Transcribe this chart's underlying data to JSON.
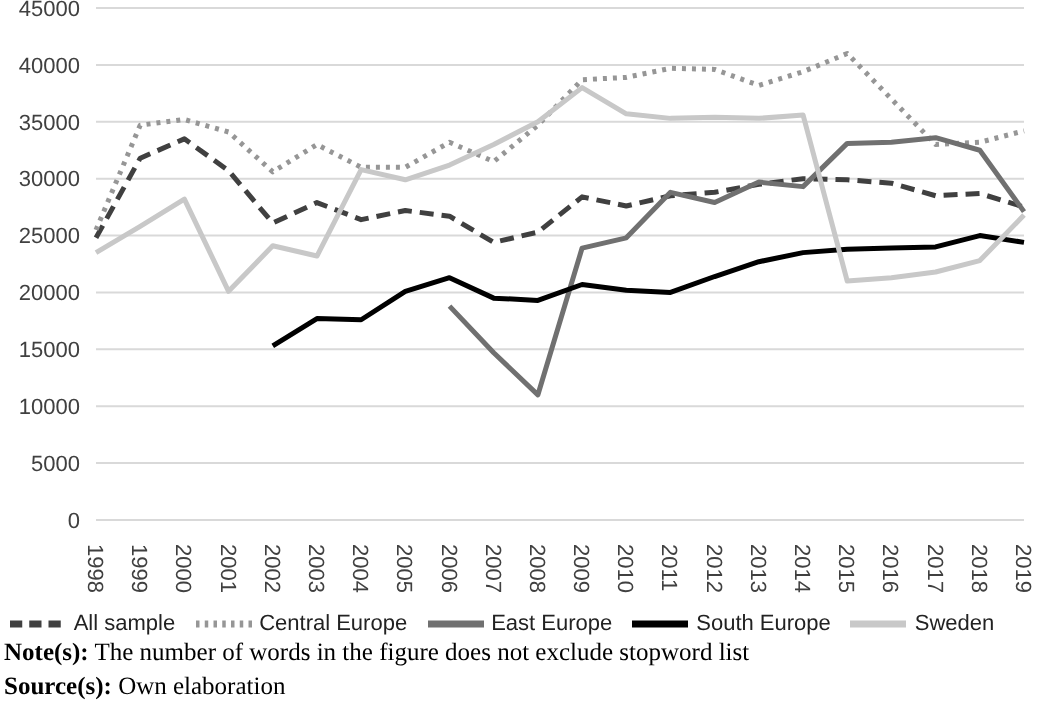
{
  "chart_data": {
    "type": "line",
    "categories": [
      "1998",
      "1999",
      "2000",
      "2001",
      "2002",
      "2003",
      "2004",
      "2005",
      "2006",
      "2007",
      "2008",
      "2009",
      "2010",
      "2011",
      "2012",
      "2013",
      "2014",
      "2015",
      "2016",
      "2017",
      "2018",
      "2019"
    ],
    "series": [
      {
        "name": "All sample",
        "color": "#404040",
        "line_style": "dashed",
        "values": [
          24800,
          31800,
          33500,
          30700,
          26100,
          27900,
          26400,
          27200,
          26700,
          24400,
          25300,
          28400,
          27600,
          28500,
          28800,
          29500,
          30000,
          29900,
          29600,
          28500,
          28700,
          27500
        ]
      },
      {
        "name": "Central Europe",
        "color": "#969696",
        "line_style": "dotted",
        "values": [
          25500,
          34700,
          35200,
          34100,
          30600,
          33000,
          31000,
          31000,
          33200,
          31500,
          34700,
          38700,
          38900,
          39700,
          39600,
          38200,
          39400,
          41000,
          37000,
          33000,
          33200,
          34200
        ]
      },
      {
        "name": "East Europe",
        "color": "#707070",
        "line_style": "solid",
        "values": [
          null,
          null,
          null,
          null,
          null,
          null,
          null,
          null,
          18800,
          14700,
          11000,
          23900,
          24800,
          28800,
          27900,
          29700,
          29300,
          33100,
          33200,
          33600,
          32500,
          27100
        ]
      },
      {
        "name": "South Europe",
        "color": "#000000",
        "line_style": "solid",
        "values": [
          null,
          null,
          null,
          null,
          15300,
          17700,
          17600,
          20100,
          21300,
          19500,
          19300,
          20700,
          20200,
          20000,
          21400,
          22700,
          23500,
          23800,
          23900,
          24000,
          25000,
          24400
        ]
      },
      {
        "name": "Sweden",
        "color": "#c8c8c8",
        "line_style": "solid",
        "values": [
          23500,
          25800,
          28200,
          20100,
          24100,
          23200,
          30800,
          29900,
          31200,
          33000,
          35000,
          38000,
          35700,
          35300,
          35400,
          35300,
          35600,
          21000,
          21300,
          21800,
          22800,
          26800
        ]
      }
    ],
    "ylim": [
      0,
      45000
    ],
    "yticks": [
      0,
      5000,
      10000,
      15000,
      20000,
      25000,
      30000,
      35000,
      40000,
      45000
    ],
    "grid": "y",
    "legend": "bottom",
    "marker": "none",
    "annotations": [
      "Note(s): The number of words in the figure does not exclude stopword list",
      "Source(s): Own elaboration"
    ]
  }
}
